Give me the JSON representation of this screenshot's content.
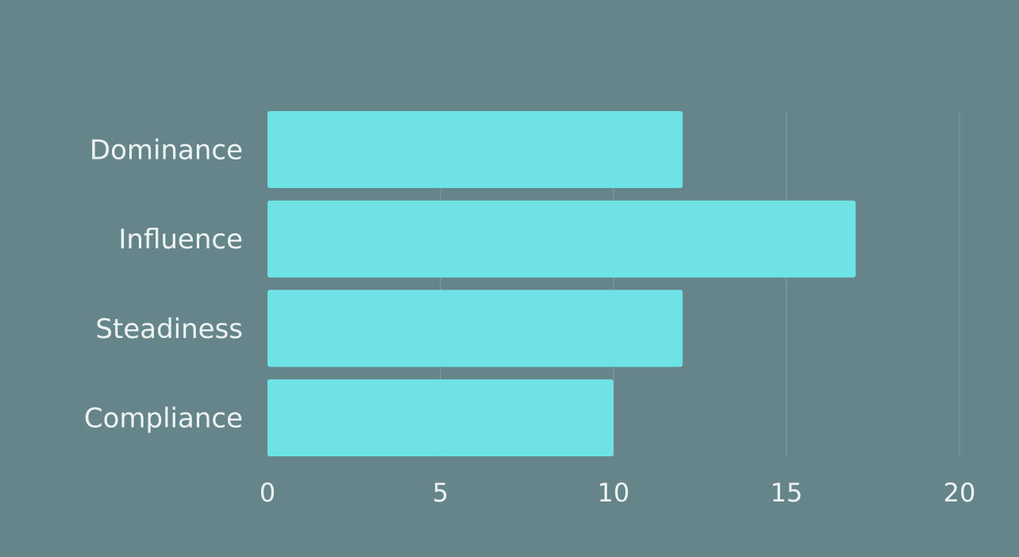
{
  "colors": {
    "background": "#66858b",
    "bar": "#6de3e6",
    "text": "#eef4f4",
    "grid": "#7f9ca1"
  },
  "chart_data": {
    "type": "bar",
    "orientation": "horizontal",
    "title": "",
    "xlabel": "",
    "ylabel": "",
    "categories": [
      "Dominance",
      "Influence",
      "Steadiness",
      "Compliance"
    ],
    "values": [
      12,
      17,
      12,
      10
    ],
    "xlim": [
      0,
      20
    ],
    "xticks": [
      "0",
      "5",
      "10",
      "15",
      "20"
    ],
    "grid": true,
    "legend": "none"
  }
}
